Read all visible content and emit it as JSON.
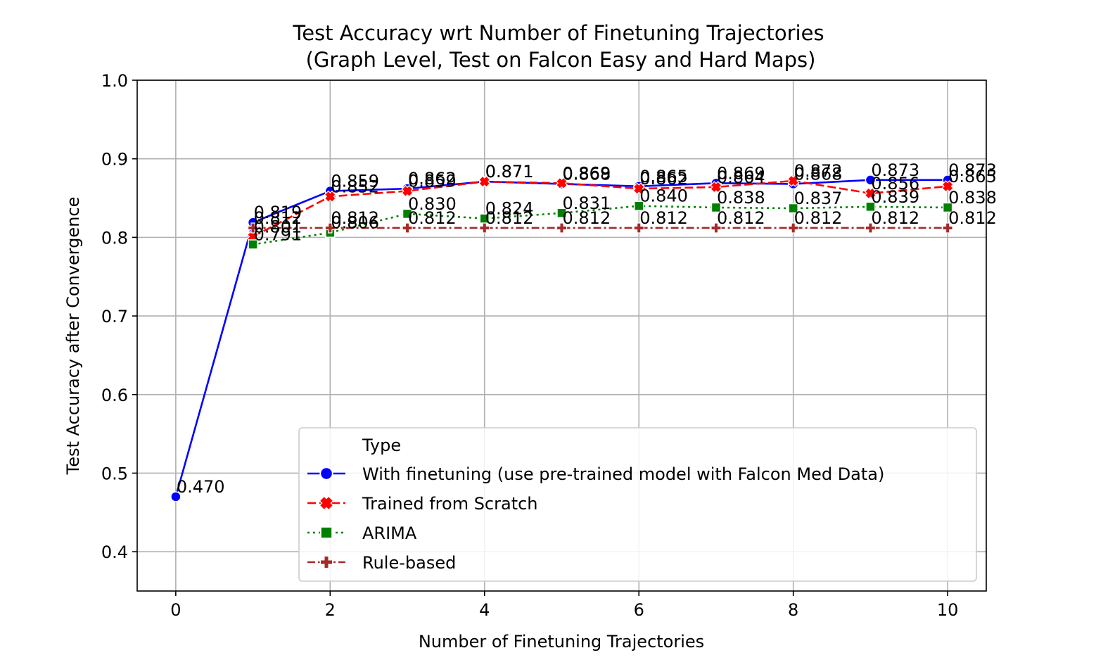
{
  "chart_data": {
    "type": "line",
    "title_lines": [
      "Test Accuracy wrt Number of Finetuning Trajectories",
      "(Graph Level, Test on Falcon Easy and Hard Maps)"
    ],
    "xlabel": "Number of Finetuning Trajectories",
    "ylabel": "Test Accuracy after Convergence",
    "xlim": [
      -0.5,
      10.5
    ],
    "ylim": [
      0.35,
      1.0
    ],
    "x_ticks": [
      0,
      2,
      4,
      6,
      8,
      10
    ],
    "x_tick_labels": [
      "0",
      "2",
      "4",
      "6",
      "8",
      "10"
    ],
    "y_ticks": [
      0.4,
      0.5,
      0.6,
      0.7,
      0.8,
      0.9,
      1.0
    ],
    "y_tick_labels": [
      "0.4",
      "0.5",
      "0.6",
      "0.7",
      "0.8",
      "0.9",
      "1.0"
    ],
    "grid": true,
    "legend": {
      "title": "Type",
      "placement": "lower-right"
    },
    "series": [
      {
        "name": "With finetuning (use pre-trained model with Falcon Med Data)",
        "color": "#0000ff",
        "dash": "solid",
        "marker": "circle",
        "x": [
          0,
          1,
          2,
          3,
          4,
          5,
          6,
          7,
          8,
          9,
          10
        ],
        "values": [
          0.47,
          0.819,
          0.859,
          0.862,
          0.871,
          0.868,
          0.865,
          0.869,
          0.868,
          0.873,
          0.873
        ],
        "labels": [
          "0.470",
          "0.819",
          "0.859",
          "0.862",
          "0.871",
          "0.868",
          "0.865",
          "0.869",
          "0.868",
          "0.873",
          "0.873"
        ]
      },
      {
        "name": "Trained from Scratch",
        "color": "#ff0000",
        "dash": "dashed",
        "marker": "x",
        "x": [
          1,
          2,
          3,
          4,
          5,
          6,
          7,
          8,
          9,
          10
        ],
        "values": [
          0.801,
          0.852,
          0.859,
          0.871,
          0.869,
          0.862,
          0.864,
          0.872,
          0.856,
          0.865
        ],
        "labels": [
          "0.801",
          "0.852",
          "0.859",
          "0.871",
          "0.869",
          "0.862",
          "0.864",
          "0.872",
          "0.856",
          "0.865"
        ]
      },
      {
        "name": "ARIMA",
        "color": "#008000",
        "dash": "dotted",
        "marker": "square",
        "x": [
          1,
          2,
          3,
          4,
          5,
          6,
          7,
          8,
          9,
          10
        ],
        "values": [
          0.791,
          0.806,
          0.83,
          0.824,
          0.831,
          0.84,
          0.838,
          0.837,
          0.839,
          0.838
        ],
        "labels": [
          "0.791",
          "0.806",
          "0.830",
          "0.824",
          "0.831",
          "0.840",
          "0.838",
          "0.837",
          "0.839",
          "0.838"
        ]
      },
      {
        "name": "Rule-based",
        "color": "#a52a2a",
        "dash": "dashdot",
        "marker": "plus",
        "x": [
          1,
          2,
          3,
          4,
          5,
          6,
          7,
          8,
          9,
          10
        ],
        "values": [
          0.812,
          0.812,
          0.812,
          0.812,
          0.812,
          0.812,
          0.812,
          0.812,
          0.812,
          0.812
        ],
        "labels": [
          "0.812",
          "0.812",
          "0.812",
          "0.812",
          "0.812",
          "0.812",
          "0.812",
          "0.812",
          "0.812",
          "0.812"
        ]
      }
    ]
  }
}
